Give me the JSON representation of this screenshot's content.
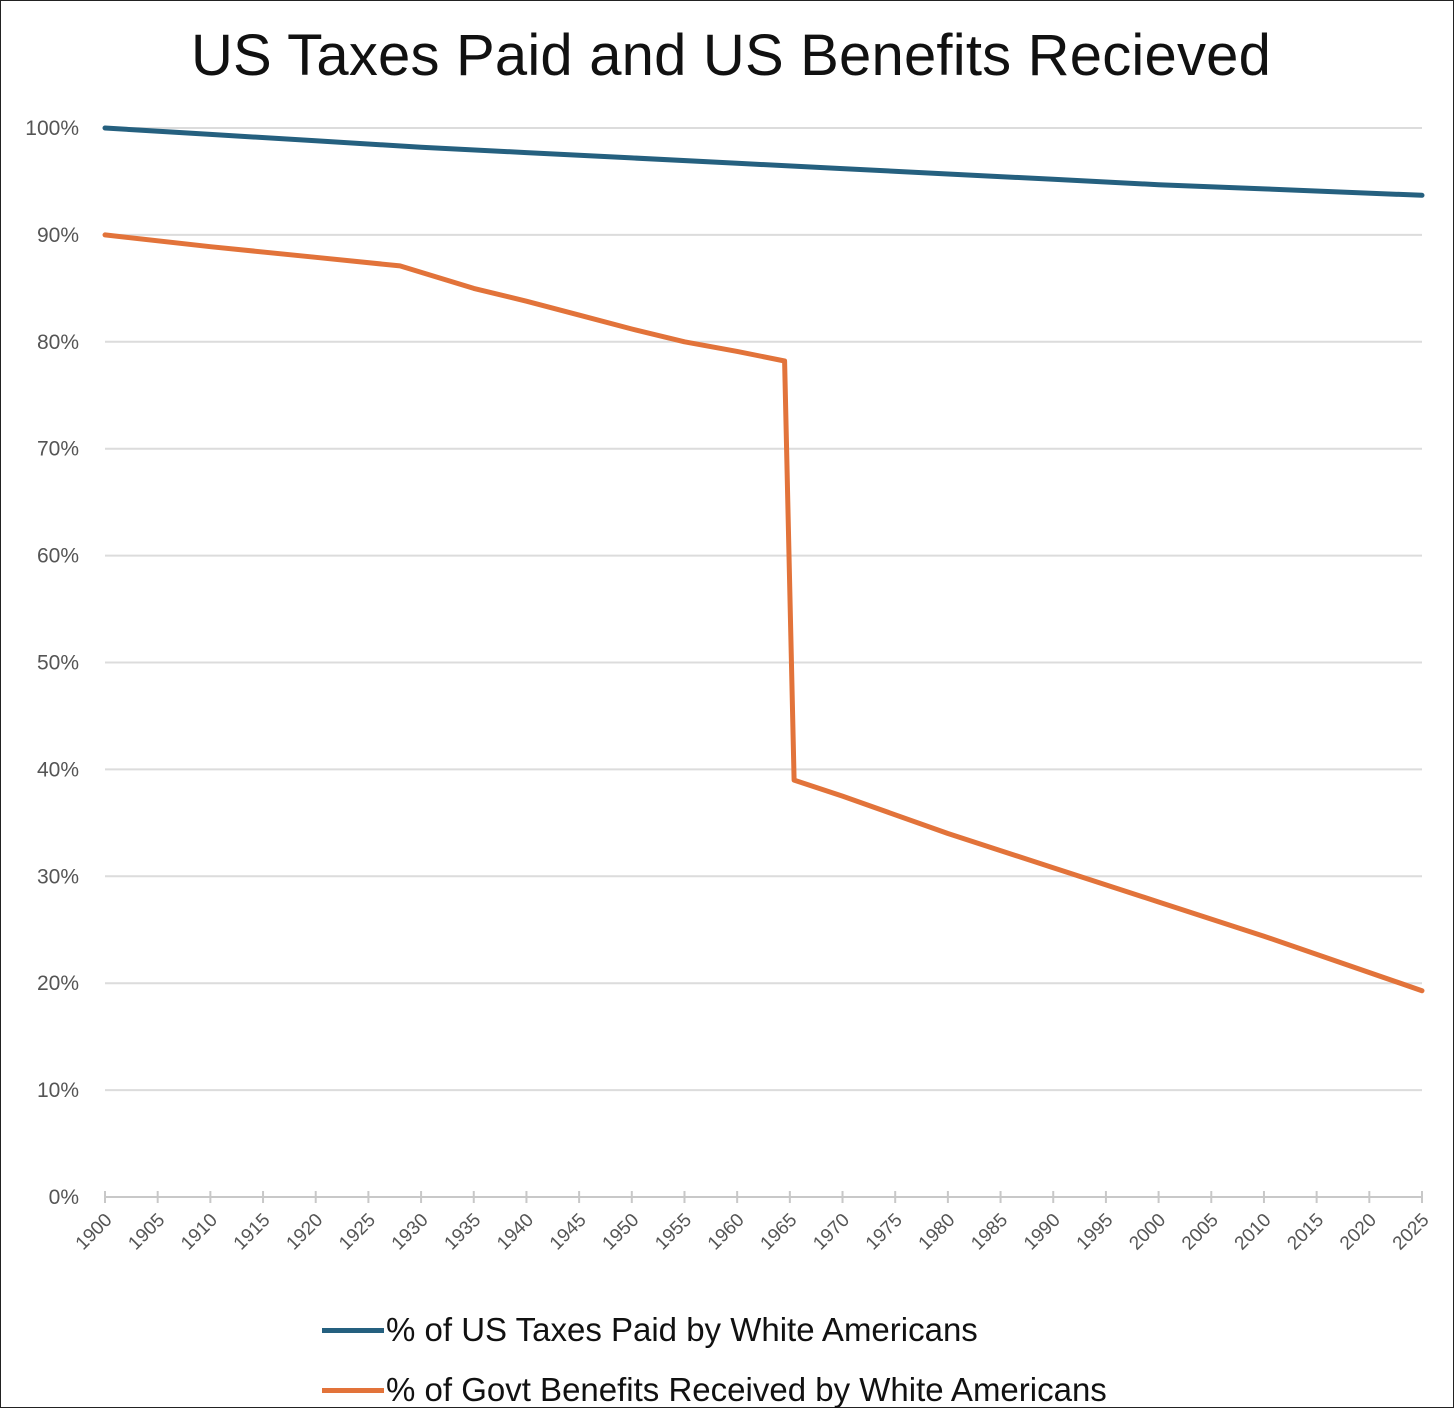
{
  "chart_data": {
    "type": "line",
    "title": "US Taxes Paid and US Benefits Recieved",
    "xlabel": "",
    "ylabel": "",
    "ylim": [
      0,
      100
    ],
    "xlim": [
      1900,
      2025
    ],
    "y_ticks": [
      "0%",
      "10%",
      "20%",
      "30%",
      "40%",
      "50%",
      "60%",
      "70%",
      "80%",
      "90%",
      "100%"
    ],
    "y_tick_values": [
      0,
      10,
      20,
      30,
      40,
      50,
      60,
      70,
      80,
      90,
      100
    ],
    "x_ticks": [
      "1900",
      "1905",
      "1910",
      "1915",
      "1920",
      "1925",
      "1930",
      "1935",
      "1940",
      "1945",
      "1950",
      "1955",
      "1960",
      "1965",
      "1970",
      "1975",
      "1980",
      "1985",
      "1990",
      "1995",
      "2000",
      "2005",
      "2010",
      "2015",
      "2020",
      "2025"
    ],
    "grid": true,
    "legend_position": "bottom",
    "series": [
      {
        "name": "% of US Taxes Paid by White Americans",
        "color": "#25607F",
        "x": [
          1900,
          1910,
          1920,
          1930,
          1940,
          1950,
          1960,
          1970,
          1980,
          1990,
          2000,
          2010,
          2025
        ],
        "values": [
          100,
          99.4,
          98.8,
          98.2,
          97.7,
          97.2,
          96.7,
          96.2,
          95.7,
          95.2,
          94.7,
          94.3,
          93.7
        ]
      },
      {
        "name": "% of Govt Benefits Received by White Americans",
        "color": "#E2733A",
        "x": [
          1900,
          1910,
          1920,
          1928,
          1935,
          1940,
          1945,
          1950,
          1955,
          1960,
          1964.5,
          1965.4,
          1970,
          1980,
          1990,
          2000,
          2010,
          2025
        ],
        "values": [
          90,
          88.9,
          87.9,
          87.1,
          85,
          83.8,
          82.5,
          81.2,
          80,
          79.1,
          78.2,
          39,
          37.5,
          34,
          30.8,
          27.6,
          24.4,
          19.3
        ]
      }
    ]
  },
  "legend": {
    "items": [
      {
        "label": "% of US Taxes Paid by White Americans",
        "color": "#25607F"
      },
      {
        "label": "% of Govt Benefits Received by White Americans",
        "color": "#E2733A"
      }
    ]
  }
}
